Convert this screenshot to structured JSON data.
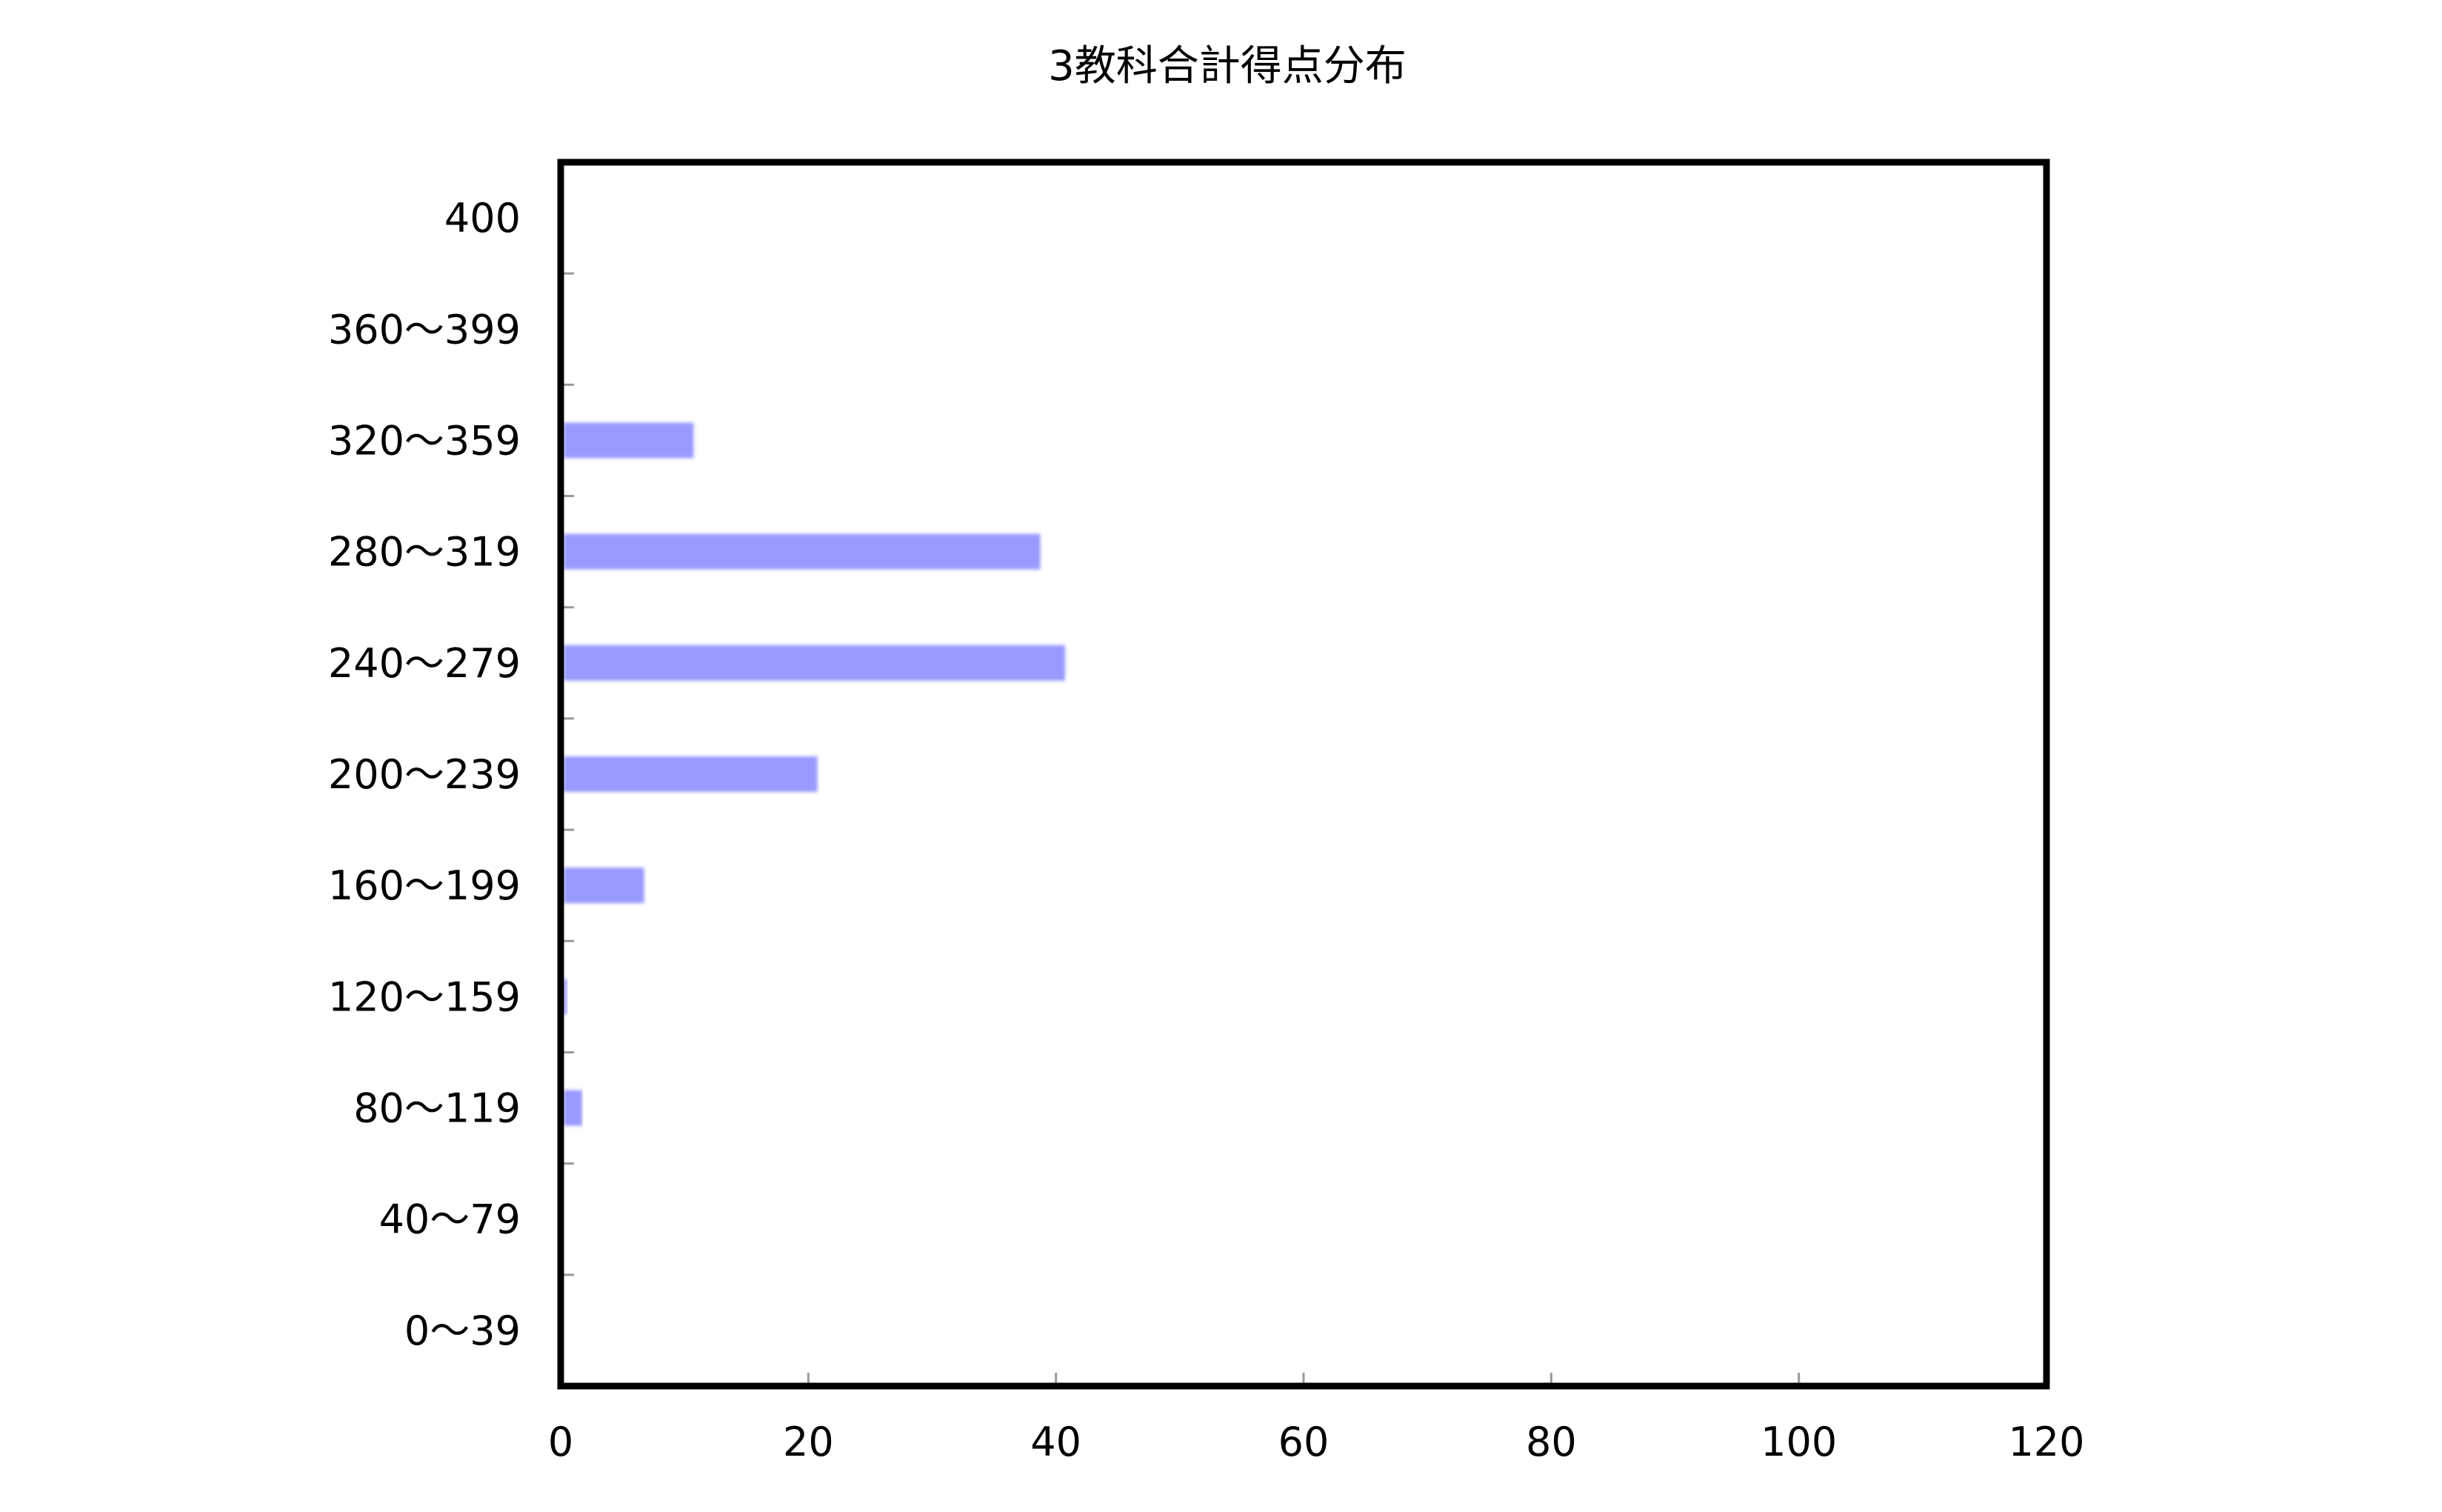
{
  "chart_data": {
    "type": "bar",
    "orientation": "horizontal",
    "title": "3教科合計得点分布",
    "xlabel": "",
    "ylabel": "",
    "categories": [
      "400",
      "360〜399",
      "320〜359",
      "280〜319",
      "240〜279",
      "200〜239",
      "160〜199",
      "120〜159",
      "80〜119",
      "40〜79",
      "0〜39"
    ],
    "values": [
      0,
      0,
      10.5,
      38.5,
      40.5,
      20.5,
      6.5,
      0.3,
      1.5,
      0,
      0
    ],
    "xlim": [
      0,
      120
    ],
    "xticks": [
      0,
      20,
      40,
      60,
      80,
      100,
      120
    ],
    "grid": false,
    "legend": "none",
    "bar_color": "#9999ff"
  }
}
